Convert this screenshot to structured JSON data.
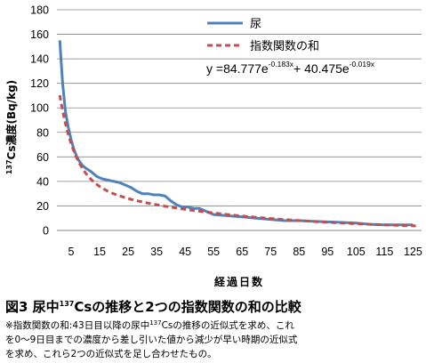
{
  "chart_data": {
    "type": "line",
    "ylabel_sup": "137",
    "ylabel_main": "Cs濃度(Bq/kg)",
    "xlabel": "経過日数",
    "ylim": [
      0,
      180
    ],
    "yticks": [
      0,
      20,
      40,
      60,
      80,
      100,
      120,
      140,
      160,
      180
    ],
    "xlim": [
      0,
      128
    ],
    "xticks": [
      5,
      15,
      25,
      35,
      45,
      55,
      65,
      75,
      85,
      95,
      105,
      115,
      125
    ],
    "grid": "horizontal",
    "legend_position": "top-right",
    "series": [
      {
        "name": "尿",
        "style": "solid",
        "color": "#4F81BD",
        "points": [
          [
            1,
            155
          ],
          [
            2,
            120
          ],
          [
            3,
            97
          ],
          [
            4,
            84
          ],
          [
            5,
            74
          ],
          [
            6,
            66
          ],
          [
            7,
            60
          ],
          [
            8,
            56
          ],
          [
            9,
            53
          ],
          [
            10,
            51
          ],
          [
            12,
            48
          ],
          [
            14,
            44
          ],
          [
            16,
            42
          ],
          [
            18,
            41
          ],
          [
            20,
            40
          ],
          [
            22,
            39
          ],
          [
            24,
            37
          ],
          [
            26,
            35
          ],
          [
            28,
            32
          ],
          [
            30,
            30
          ],
          [
            32,
            30
          ],
          [
            34,
            29
          ],
          [
            36,
            29
          ],
          [
            38,
            28
          ],
          [
            40,
            24
          ],
          [
            42,
            21
          ],
          [
            44,
            19
          ],
          [
            46,
            19
          ],
          [
            48,
            18
          ],
          [
            50,
            18
          ],
          [
            52,
            16
          ],
          [
            55,
            13
          ],
          [
            60,
            12
          ],
          [
            65,
            11
          ],
          [
            70,
            10
          ],
          [
            75,
            9
          ],
          [
            80,
            8
          ],
          [
            85,
            8
          ],
          [
            90,
            7.5
          ],
          [
            95,
            7
          ],
          [
            100,
            6.5
          ],
          [
            105,
            6
          ],
          [
            110,
            5
          ],
          [
            115,
            4.5
          ],
          [
            120,
            4.5
          ],
          [
            125,
            4.5
          ]
        ]
      },
      {
        "name": "指数関数の和",
        "style": "dashed",
        "color": "#C0504D",
        "equation": {
          "prefix": "y =84.777e",
          "exp1": "-0.183x",
          "middle": "+ 40.475e",
          "exp2": "-0.019x"
        },
        "params": [
          84.777,
          -0.183,
          40.475,
          -0.019
        ],
        "x_range": [
          1,
          126
        ]
      }
    ]
  },
  "figure": {
    "title_prefix": "図3 尿中",
    "title_sup": "137",
    "title_suffix": "Csの推移と2つの指数関数の和の比較",
    "note_line1_a": "※指数関数の和:43日目以降の尿中",
    "note_line1_sup": "137",
    "note_line1_b": "Csの推移の近似式を求め、これ",
    "note_line2": "を0～9日目までの濃度から差し引いた値から減少が早い時期の近似式",
    "note_line3": "を求め、これら2つの近似式を足し合わせたもの。"
  }
}
